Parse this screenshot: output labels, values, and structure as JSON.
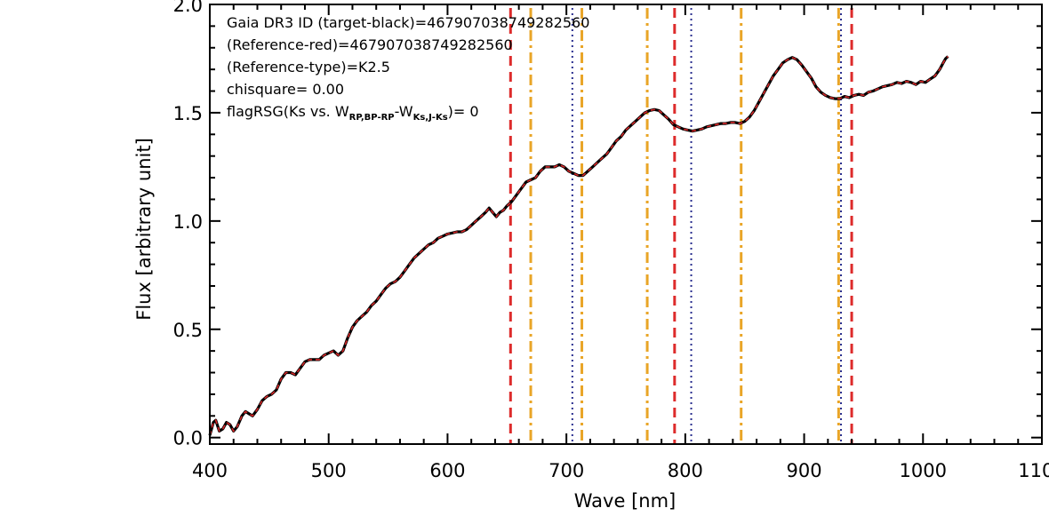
{
  "chart_data": {
    "type": "line",
    "xlabel": "Wave [nm]",
    "ylabel": "Flux [arbitrary unit]",
    "xlim": [
      400,
      1100
    ],
    "ylim": [
      -0.03,
      2.0
    ],
    "x_ticks": [
      "400",
      "500",
      "600",
      "700",
      "800",
      "900",
      "1000",
      "1100"
    ],
    "y_ticks": [
      "0.0",
      "0.5",
      "1.0",
      "1.5",
      "2.0"
    ],
    "grid": false,
    "annotations": {
      "line1": "Gaia DR3 ID (target-black)=4679070387492825​60",
      "line2": "(Reference-red)=467907038749282560",
      "line3": "(Reference-type)=K2.5",
      "line4": "chisquare= 0.00",
      "line5_pre": "flagRSG(Ks vs. W",
      "line5_sub1": "RP,BP-RP",
      "line5_mid": "-W",
      "line5_sub2": "Ks,J-Ks",
      "line5_post": ")= 0"
    },
    "series": [
      {
        "color": "#000000",
        "style": "solid",
        "points": [
          [
            400,
            0.01
          ],
          [
            403,
            0.07
          ],
          [
            405,
            0.08
          ],
          [
            408,
            0.03
          ],
          [
            411,
            0.04
          ],
          [
            414,
            0.07
          ],
          [
            417,
            0.06
          ],
          [
            420,
            0.03
          ],
          [
            423,
            0.05
          ],
          [
            427,
            0.1
          ],
          [
            430,
            0.12
          ],
          [
            433,
            0.11
          ],
          [
            436,
            0.1
          ],
          [
            440,
            0.13
          ],
          [
            444,
            0.17
          ],
          [
            448,
            0.19
          ],
          [
            452,
            0.2
          ],
          [
            456,
            0.22
          ],
          [
            460,
            0.27
          ],
          [
            464,
            0.3
          ],
          [
            468,
            0.3
          ],
          [
            472,
            0.29
          ],
          [
            476,
            0.32
          ],
          [
            480,
            0.35
          ],
          [
            484,
            0.36
          ],
          [
            488,
            0.36
          ],
          [
            492,
            0.36
          ],
          [
            496,
            0.38
          ],
          [
            500,
            0.39
          ],
          [
            504,
            0.4
          ],
          [
            508,
            0.38
          ],
          [
            512,
            0.4
          ],
          [
            516,
            0.46
          ],
          [
            520,
            0.51
          ],
          [
            524,
            0.54
          ],
          [
            528,
            0.56
          ],
          [
            532,
            0.58
          ],
          [
            536,
            0.61
          ],
          [
            540,
            0.63
          ],
          [
            544,
            0.66
          ],
          [
            548,
            0.69
          ],
          [
            552,
            0.71
          ],
          [
            556,
            0.72
          ],
          [
            560,
            0.74
          ],
          [
            564,
            0.77
          ],
          [
            568,
            0.8
          ],
          [
            572,
            0.83
          ],
          [
            576,
            0.85
          ],
          [
            580,
            0.87
          ],
          [
            584,
            0.89
          ],
          [
            588,
            0.9
          ],
          [
            592,
            0.92
          ],
          [
            596,
            0.93
          ],
          [
            600,
            0.94
          ],
          [
            604,
            0.945
          ],
          [
            608,
            0.95
          ],
          [
            612,
            0.95
          ],
          [
            616,
            0.96
          ],
          [
            620,
            0.98
          ],
          [
            624,
            1.0
          ],
          [
            628,
            1.02
          ],
          [
            632,
            1.04
          ],
          [
            635,
            1.06
          ],
          [
            638,
            1.04
          ],
          [
            641,
            1.02
          ],
          [
            644,
            1.04
          ],
          [
            647,
            1.05
          ],
          [
            650,
            1.07
          ],
          [
            654,
            1.09
          ],
          [
            658,
            1.12
          ],
          [
            662,
            1.15
          ],
          [
            666,
            1.18
          ],
          [
            670,
            1.19
          ],
          [
            674,
            1.2
          ],
          [
            678,
            1.23
          ],
          [
            682,
            1.25
          ],
          [
            686,
            1.25
          ],
          [
            690,
            1.25
          ],
          [
            694,
            1.26
          ],
          [
            698,
            1.25
          ],
          [
            702,
            1.23
          ],
          [
            706,
            1.22
          ],
          [
            710,
            1.21
          ],
          [
            714,
            1.21
          ],
          [
            718,
            1.23
          ],
          [
            722,
            1.25
          ],
          [
            726,
            1.27
          ],
          [
            730,
            1.29
          ],
          [
            734,
            1.31
          ],
          [
            738,
            1.34
          ],
          [
            742,
            1.37
          ],
          [
            746,
            1.39
          ],
          [
            750,
            1.42
          ],
          [
            754,
            1.44
          ],
          [
            758,
            1.46
          ],
          [
            762,
            1.48
          ],
          [
            766,
            1.5
          ],
          [
            770,
            1.51
          ],
          [
            774,
            1.515
          ],
          [
            778,
            1.51
          ],
          [
            782,
            1.49
          ],
          [
            786,
            1.47
          ],
          [
            790,
            1.445
          ],
          [
            794,
            1.435
          ],
          [
            798,
            1.425
          ],
          [
            802,
            1.42
          ],
          [
            806,
            1.415
          ],
          [
            810,
            1.42
          ],
          [
            814,
            1.425
          ],
          [
            818,
            1.435
          ],
          [
            822,
            1.44
          ],
          [
            826,
            1.445
          ],
          [
            830,
            1.45
          ],
          [
            834,
            1.45
          ],
          [
            838,
            1.455
          ],
          [
            842,
            1.455
          ],
          [
            846,
            1.45
          ],
          [
            850,
            1.46
          ],
          [
            854,
            1.48
          ],
          [
            858,
            1.51
          ],
          [
            862,
            1.55
          ],
          [
            866,
            1.59
          ],
          [
            870,
            1.63
          ],
          [
            874,
            1.67
          ],
          [
            878,
            1.7
          ],
          [
            882,
            1.73
          ],
          [
            886,
            1.745
          ],
          [
            890,
            1.755
          ],
          [
            894,
            1.745
          ],
          [
            898,
            1.72
          ],
          [
            902,
            1.69
          ],
          [
            906,
            1.66
          ],
          [
            910,
            1.62
          ],
          [
            914,
            1.595
          ],
          [
            918,
            1.58
          ],
          [
            922,
            1.57
          ],
          [
            926,
            1.565
          ],
          [
            930,
            1.565
          ],
          [
            934,
            1.575
          ],
          [
            938,
            1.57
          ],
          [
            942,
            1.58
          ],
          [
            946,
            1.585
          ],
          [
            950,
            1.58
          ],
          [
            954,
            1.595
          ],
          [
            958,
            1.6
          ],
          [
            962,
            1.61
          ],
          [
            966,
            1.62
          ],
          [
            970,
            1.625
          ],
          [
            974,
            1.63
          ],
          [
            978,
            1.64
          ],
          [
            982,
            1.635
          ],
          [
            986,
            1.645
          ],
          [
            990,
            1.64
          ],
          [
            994,
            1.63
          ],
          [
            998,
            1.645
          ],
          [
            1002,
            1.64
          ],
          [
            1006,
            1.655
          ],
          [
            1010,
            1.67
          ],
          [
            1014,
            1.7
          ],
          [
            1017,
            1.73
          ],
          [
            1019,
            1.75
          ],
          [
            1021,
            1.76
          ]
        ]
      },
      {
        "color": "#d62728",
        "style": "dashed",
        "same_as_series": 0
      }
    ],
    "vertical_lines": [
      {
        "x": 653,
        "color": "#dd2b2b",
        "style": "dashed"
      },
      {
        "x": 791,
        "color": "#dd2b2b",
        "style": "dashed"
      },
      {
        "x": 940,
        "color": "#dd2b2b",
        "style": "dashed"
      },
      {
        "x": 670,
        "color": "#e9a527",
        "style": "dashdot"
      },
      {
        "x": 713,
        "color": "#e9a527",
        "style": "dashdot"
      },
      {
        "x": 768,
        "color": "#e9a527",
        "style": "dashdot"
      },
      {
        "x": 847,
        "color": "#e9a527",
        "style": "dashdot"
      },
      {
        "x": 929,
        "color": "#e9a527",
        "style": "dashdot"
      },
      {
        "x": 705,
        "color": "#2a2f8f",
        "style": "dotted"
      },
      {
        "x": 805,
        "color": "#2a2f8f",
        "style": "dotted"
      },
      {
        "x": 931,
        "color": "#2a2f8f",
        "style": "dotted"
      }
    ]
  }
}
